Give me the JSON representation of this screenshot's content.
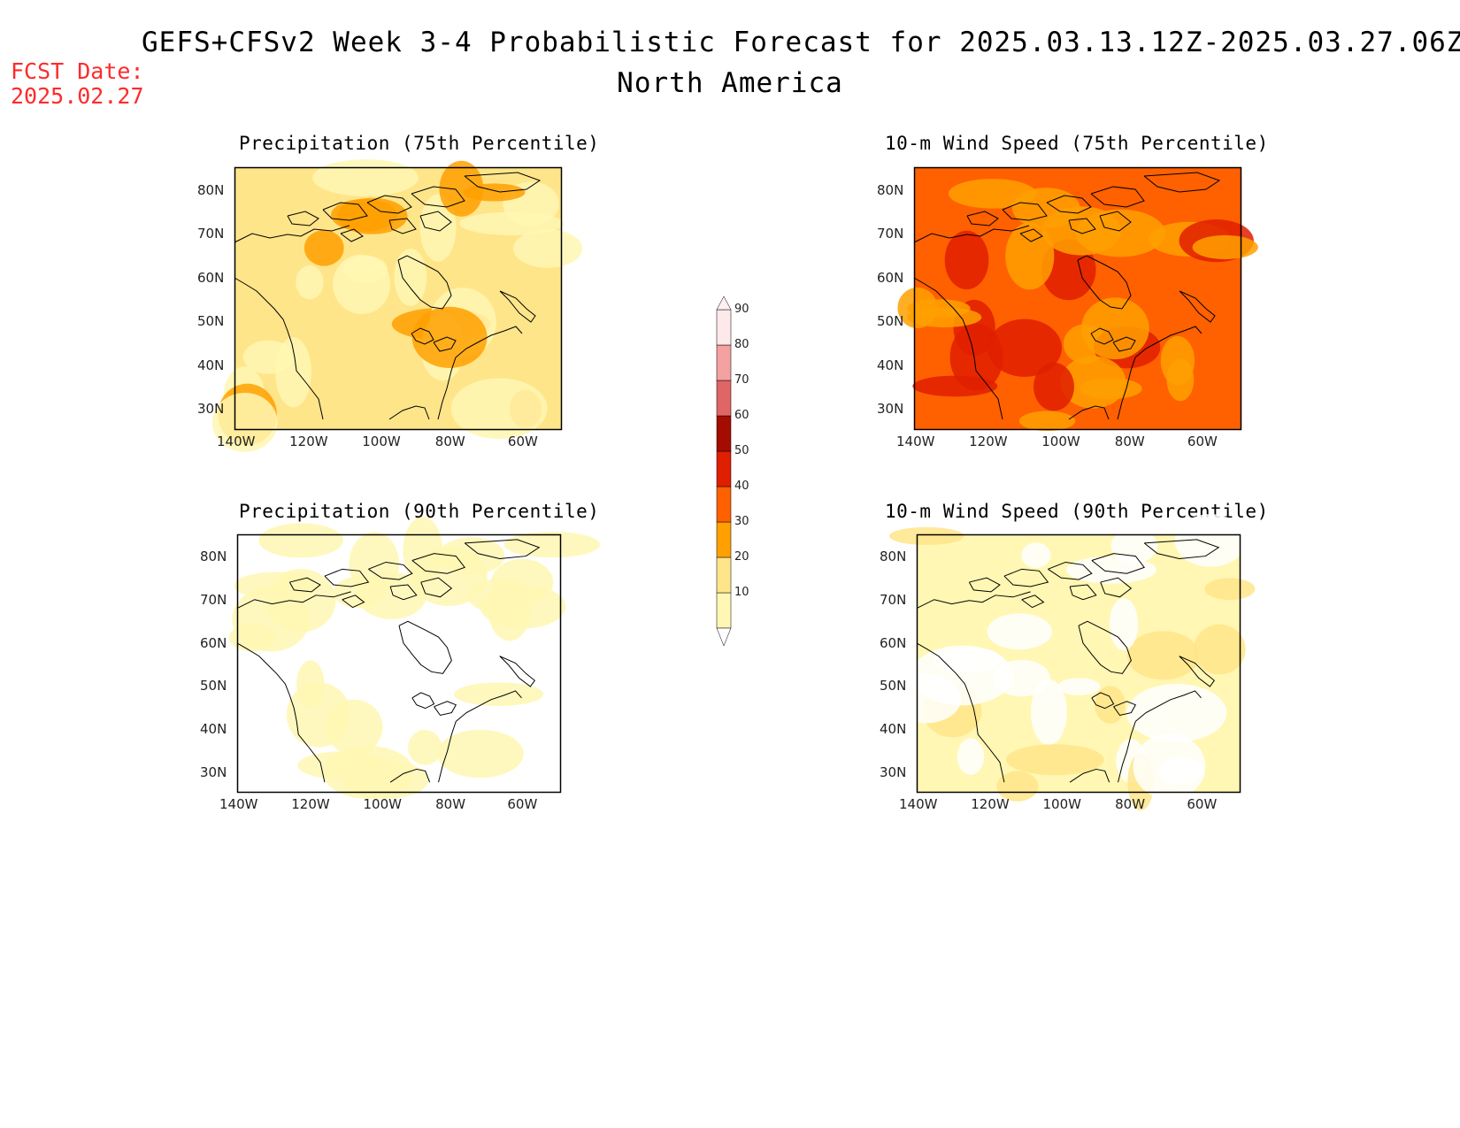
{
  "header": {
    "title": "GEFS+CFSv2 Week 3-4 Probabilistic Forecast for 2025.03.13.12Z-2025.03.27.06Z",
    "region": "North America",
    "fcst_label": "FCST Date:",
    "fcst_date": "2025.02.27"
  },
  "panels": [
    {
      "id": "precip-75",
      "title": "Precipitation (75th Percentile)",
      "dominant_level": 20,
      "accent_level": 30
    },
    {
      "id": "wind-75",
      "title": "10-m Wind Speed (75th Percentile)",
      "dominant_level": 40,
      "accent_level": 50
    },
    {
      "id": "precip-90",
      "title": "Precipitation (90th Percentile)",
      "dominant_level": 0,
      "accent_level": 10
    },
    {
      "id": "wind-90",
      "title": "10-m Wind Speed (90th Percentile)",
      "dominant_level": 10,
      "accent_level": 20
    }
  ],
  "axes": {
    "lon_ticks": [
      "140W",
      "120W",
      "100W",
      "80W",
      "60W"
    ],
    "lat_ticks": [
      "80N",
      "70N",
      "60N",
      "50N",
      "40N",
      "30N"
    ]
  },
  "colorbar": {
    "levels": [
      "10",
      "20",
      "30",
      "40",
      "50",
      "60",
      "70",
      "80",
      "90"
    ],
    "colors": [
      "#fff7b3",
      "#ffe58a",
      "#ffa000",
      "#ff6000",
      "#e01e00",
      "#a50c00",
      "#e06666",
      "#f4a1a1",
      "#fde8ea",
      "#fff7b3"
    ]
  }
}
